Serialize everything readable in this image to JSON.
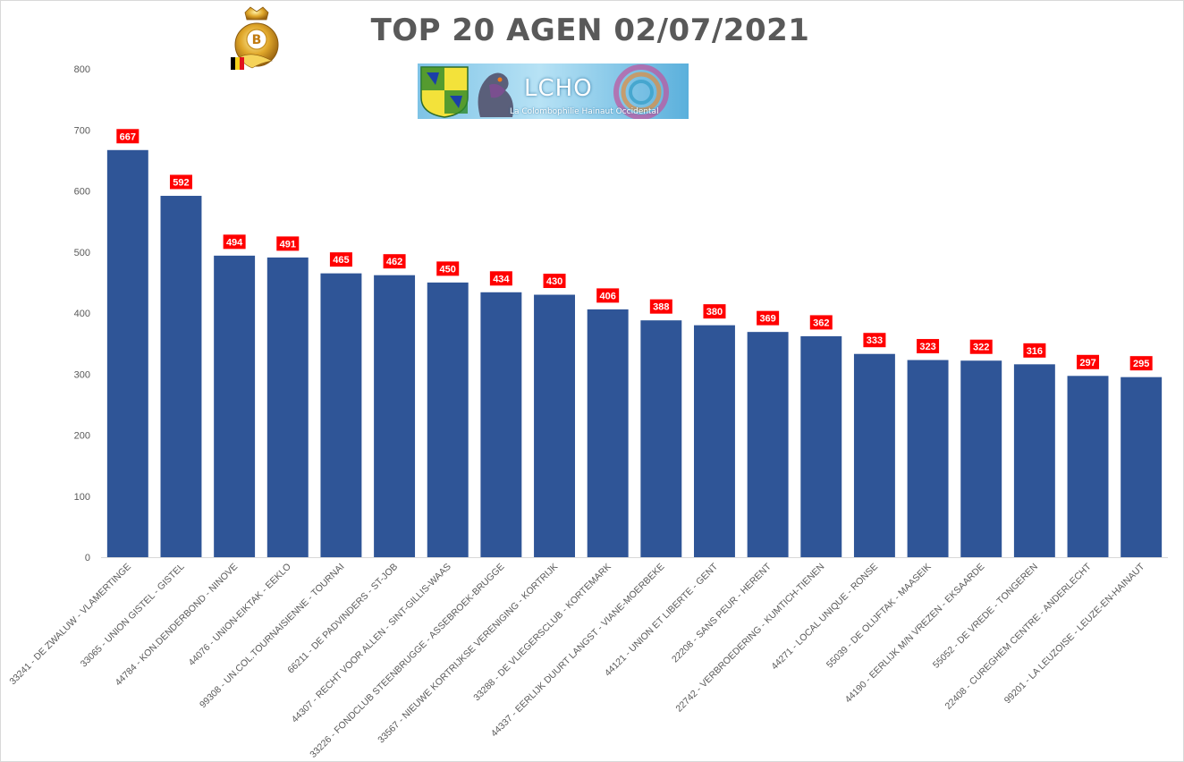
{
  "title": "TOP 20 AGEN 02/07/2021",
  "logos": {
    "crest_letter": "B",
    "banner_text": "LCHO",
    "banner_subtitle": "La Colombophilie Hainaut Occidental"
  },
  "colors": {
    "bar": "#2f5597",
    "data_label_bg": "#ff0000",
    "axis_text": "#595959"
  },
  "chart_data": {
    "type": "bar",
    "title": "TOP 20 AGEN 02/07/2021",
    "xlabel": "",
    "ylabel": "",
    "ylim": [
      0,
      800
    ],
    "yticks": [
      0,
      100,
      200,
      300,
      400,
      500,
      600,
      700,
      800
    ],
    "grid": false,
    "legend": "none",
    "categories": [
      "33241 - DE ZWALUW - VLAMERTINGE",
      "33065 - UNION GISTEL - GISTEL",
      "44784 - KON.DENDERBOND - NINOVE",
      "44076 - UNION-EIKTAK - EEKLO",
      "99308 - UN.COL.TOURNAISIENNE - TOURNAI",
      "66211 - DE PADVINDERS - ST-JOB",
      "44307 - RECHT VOOR ALLEN - SINT-GILLIS-WAAS",
      "33226 - FONDCLUB STEENBRUGGE - ASSEBROEK-BRUGGE",
      "33567 - NIEUWE KORTRIJKSE VERENIGING - KORTRIJK",
      "33288 - DE VLIEGERSCLUB - KORTEMARK",
      "44337 - EERLIJK DUURT LANGST - VIANE-MOERBEKE",
      "44121 - UNION ET LIBERTE - GENT",
      "22208 - SANS PEUR - HERENT",
      "22742 - VERBROEDERING - KUMTICH-TIENEN",
      "44271 - LOCAL UNIQUE - RONSE",
      "55039 - DE OLIJFTAK - MAASEIK",
      "44190 - EERLIJK M/N VREZEN - EKSAARDE",
      "55052 - DE VREDE - TONGEREN",
      "22408 - CUREGHEM CENTRE - ANDERLECHT",
      "99201 - LA LEUZOISE - LEUZE-EN-HAINAUT"
    ],
    "values": [
      667,
      592,
      494,
      491,
      465,
      462,
      450,
      434,
      430,
      406,
      388,
      380,
      369,
      362,
      333,
      323,
      322,
      316,
      297,
      295
    ]
  }
}
